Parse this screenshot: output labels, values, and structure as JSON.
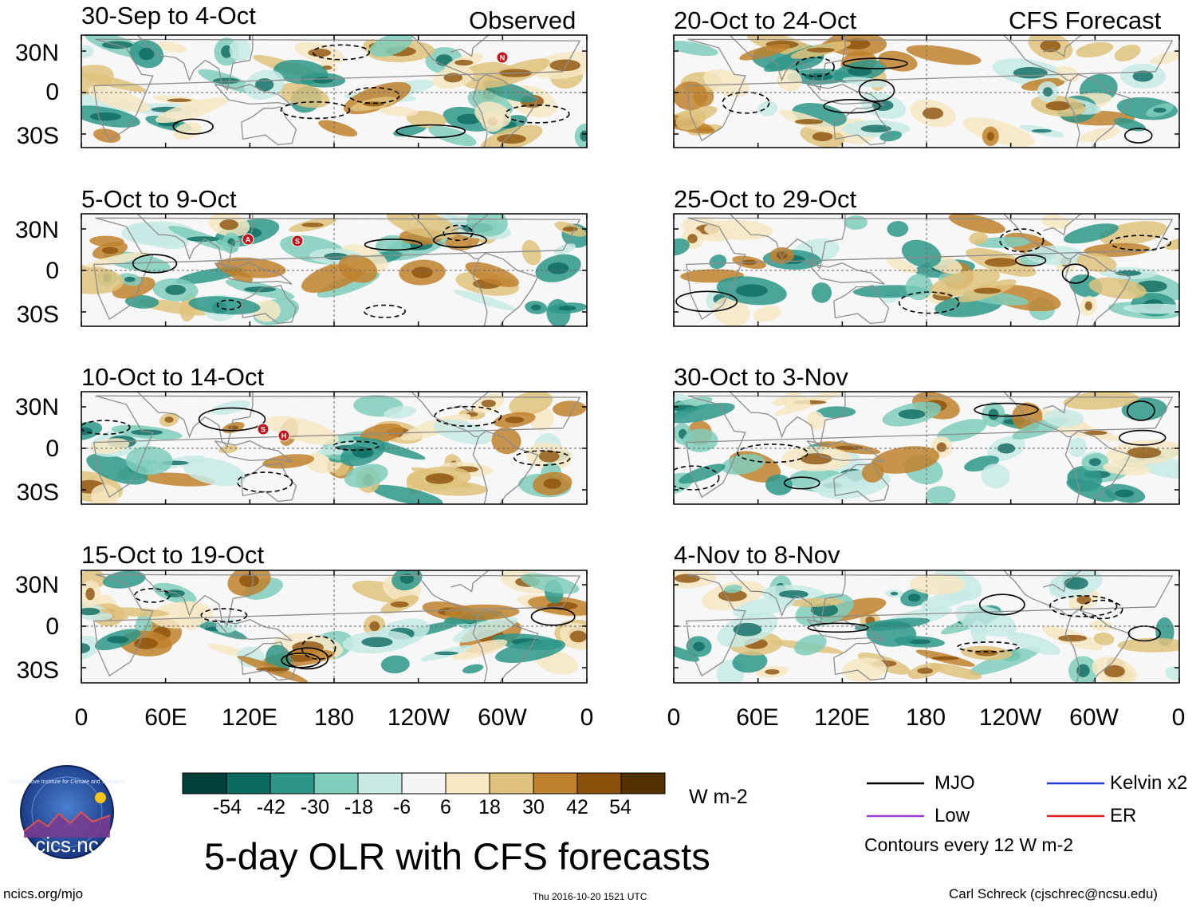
{
  "observed_label": "Observed",
  "forecast_label": "CFS Forecast",
  "panels_left": [
    {
      "title": "30-Sep to 4-Oct",
      "storms": [
        "N"
      ]
    },
    {
      "title": "5-Oct to 9-Oct",
      "storms": [
        "A",
        "S"
      ]
    },
    {
      "title": "10-Oct to 14-Oct",
      "storms": [
        "S",
        "H"
      ]
    },
    {
      "title": "15-Oct to 19-Oct",
      "storms": []
    }
  ],
  "panels_right": [
    {
      "title": "20-Oct to 24-Oct"
    },
    {
      "title": "25-Oct to 29-Oct"
    },
    {
      "title": "30-Oct to 3-Nov"
    },
    {
      "title": "4-Nov to 8-Nov"
    }
  ],
  "lat_labels": [
    "30N",
    "0",
    "30S"
  ],
  "lon_labels": [
    "0",
    "60E",
    "120E",
    "180",
    "120W",
    "60W",
    "0"
  ],
  "colorbar": {
    "colors": [
      "#01403a",
      "#0c6a60",
      "#2e9688",
      "#7fcdbb",
      "#c7eae5",
      "#f5f5f5",
      "#f6e8c3",
      "#dfc27d",
      "#bf812d",
      "#8c510a",
      "#543005"
    ],
    "labels": [
      "-54",
      "-42",
      "-30",
      "-18",
      "-6",
      "6",
      "18",
      "30",
      "42",
      "54"
    ],
    "units": "W m-2"
  },
  "legend": {
    "items": [
      {
        "name": "MJO",
        "color": "#000000"
      },
      {
        "name": "Kelvin x2",
        "color": "#1f3fd6"
      },
      {
        "name": "Low",
        "color": "#9b3fd6"
      },
      {
        "name": "ER",
        "color": "#e02020"
      }
    ],
    "note": "Contours every 12 W m-2"
  },
  "main_title": "5-day OLR with CFS forecasts",
  "logo_text": "cics.nc",
  "logo_ring_text": "Cooperative Institute for Climate and Satellites",
  "footer": {
    "left": "ncics.org/mjo",
    "center": "Thu 2016-10-20 1521 UTC",
    "right": "Carl Schreck (cjschrec@ncsu.edu)"
  }
}
